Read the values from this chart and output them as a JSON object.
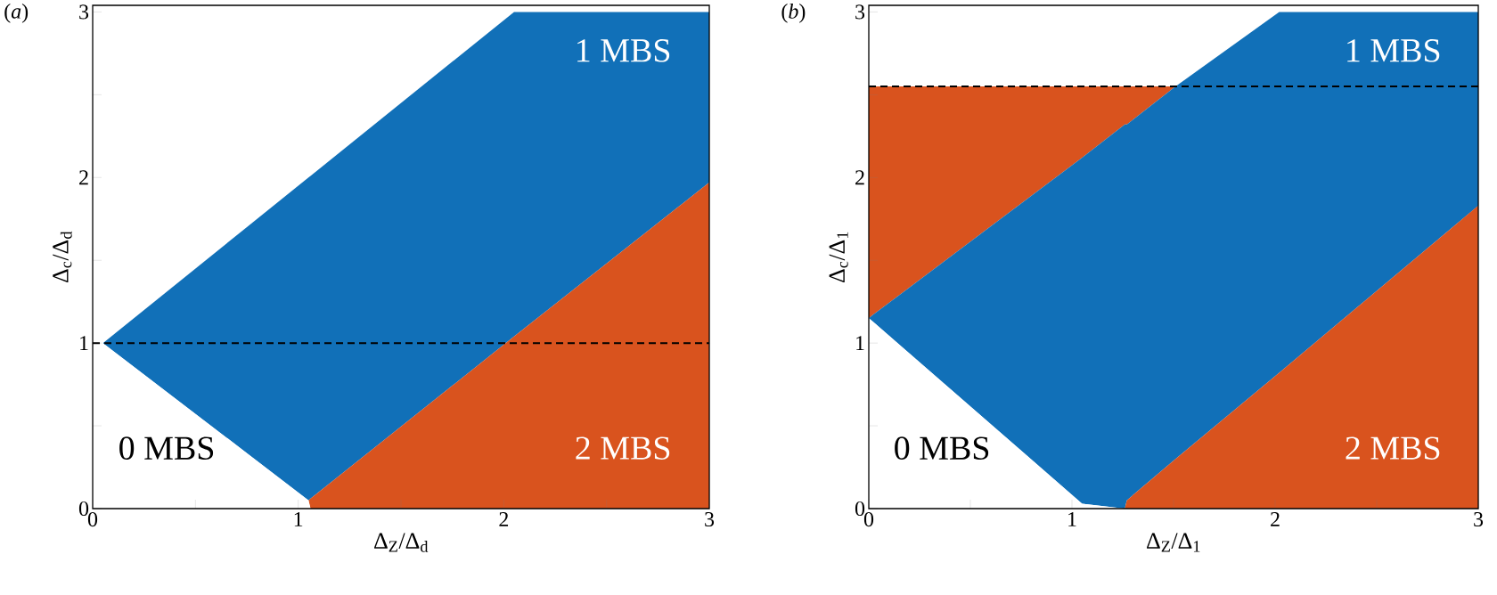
{
  "chart_data": [
    {
      "type": "area",
      "stacked": true,
      "title": "(*a*)",
      "xlabel": "Δ$_{Z}$/Δ$_{d}$",
      "ylabel": "Δ$_{c}$/Δ$_{d}$",
      "xlim": [
        0,
        3
      ],
      "ylim": [
        0,
        3.04
      ],
      "xticks": [
        0,
        {
          "value": 0.5,
          "label": null
        },
        1,
        {
          "value": 1.5,
          "label": null
        },
        2,
        {
          "value": 2.5,
          "label": null
        },
        3
      ],
      "yticks": [
        0,
        {
          "value": 0.5,
          "label": null
        },
        1,
        {
          "value": 1.5,
          "label": null
        },
        2,
        {
          "value": 2.5,
          "label": null
        },
        3
      ],
      "x": [
        0,
        0.05,
        1.05,
        1.06,
        2.05,
        3
      ],
      "series": [
        {
          "color": "#ffffff",
          "values": [
            1.0,
            1.0,
            0.05,
            0,
            0,
            0
          ]
        },
        {
          "color": "#d9531e",
          "values": [
            0,
            0,
            0,
            0.06,
            1.04,
            1.97
          ]
        },
        {
          "color": "#1170b8",
          "values": [
            0,
            0,
            1.95,
            1.95,
            1.96,
            1.03
          ]
        }
      ],
      "ref_lines": [
        {
          "axis": "y",
          "value": 1,
          "color": "#000000",
          "line_style": "dashed"
        }
      ],
      "annotations": [
        "1 MBS",
        "0 MBS",
        "2 MBS"
      ]
    },
    {
      "type": "area",
      "stacked": true,
      "title": "(*b*)",
      "xlabel": "Δ$_{Z}$/Δ$_{1}$",
      "ylabel": "Δ$_{c}$/Δ$_{1}$",
      "xlim": [
        0,
        3
      ],
      "ylim": [
        0,
        3.04
      ],
      "xticks": [
        0,
        {
          "value": 0.5,
          "label": null
        },
        1,
        {
          "value": 1.5,
          "label": null
        },
        2,
        {
          "value": 2.5,
          "label": null
        },
        3
      ],
      "yticks": [
        0,
        {
          "value": 0.5,
          "label": null
        },
        1,
        {
          "value": 1.5,
          "label": null
        },
        2,
        {
          "value": 2.5,
          "label": null
        },
        3
      ],
      "x": [
        0,
        0.02,
        1.05,
        1.26,
        1.27,
        1.51,
        2.02,
        3
      ],
      "series": [
        {
          "color": "#ffffff",
          "values": [
            1.15,
            1.13,
            0.03,
            0,
            0,
            0,
            0,
            0
          ]
        },
        {
          "color": "#d9531e",
          "values": [
            0,
            0,
            0,
            0,
            0.05,
            0.3,
            0.82,
            1.83
          ]
        },
        {
          "color": "#1170b8",
          "values": [
            0,
            0.04,
            2.09,
            2.32,
            2.27,
            2.25,
            2.18,
            1.17
          ]
        },
        {
          "color": "#d9531e",
          "values": [
            1.4,
            1.38,
            0.43,
            0.23,
            0.23,
            0,
            0,
            0
          ]
        }
      ],
      "ref_lines": [
        {
          "axis": "y",
          "value": 2.55,
          "color": "#000000",
          "line_style": "dashed"
        }
      ],
      "annotations": [
        "1 MBS",
        "0 MBS",
        "2 MBS"
      ]
    }
  ]
}
